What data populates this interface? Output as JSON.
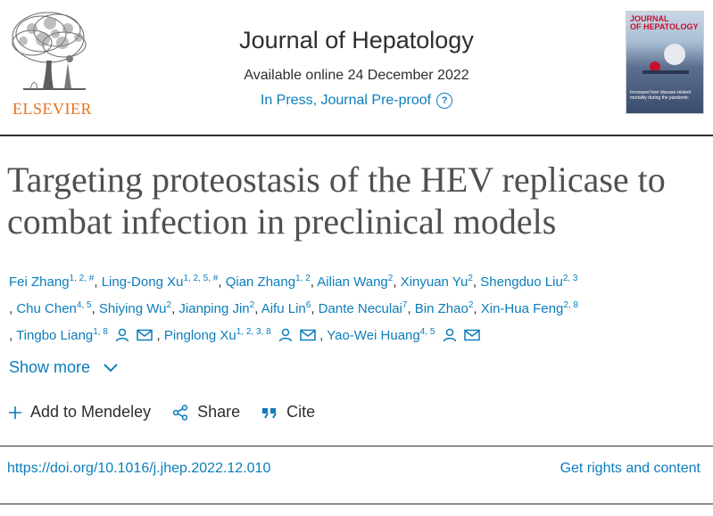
{
  "publisher": {
    "name": "ELSEVIER"
  },
  "journal": {
    "title": "Journal of Hepatology",
    "available": "Available online 24 December 2022",
    "status": "In Press, Journal Pre-proof",
    "help": "?"
  },
  "cover": {
    "title_line1": "JOURNAL",
    "title_line2": "OF HEPATOLOGY",
    "caption": "Increased liver disease-related mortality during the pandemic"
  },
  "article": {
    "title": "Targeting proteostasis of the HEV replicase to combat infection in preclinical models"
  },
  "authors": [
    {
      "name": "Fei Zhang",
      "aff": "1, 2, #"
    },
    {
      "name": "Ling-Dong Xu",
      "aff": "1, 2, 5, #"
    },
    {
      "name": "Qian Zhang",
      "aff": "1, 2"
    },
    {
      "name": "Ailian Wang",
      "aff": "2"
    },
    {
      "name": "Xinyuan Yu",
      "aff": "2"
    },
    {
      "name": "Shengduo Liu",
      "aff": "2, 3"
    },
    {
      "name": "Chu Chen",
      "aff": "4, 5"
    },
    {
      "name": "Shiying Wu",
      "aff": "2"
    },
    {
      "name": "Jianping Jin",
      "aff": "2"
    },
    {
      "name": "Aifu Lin",
      "aff": "6"
    },
    {
      "name": "Dante Neculai",
      "aff": "7"
    },
    {
      "name": "Bin Zhao",
      "aff": "2"
    },
    {
      "name": "Xin-Hua Feng",
      "aff": "2, 8"
    },
    {
      "name": "Tingbo Liang",
      "aff": "1, 8"
    },
    {
      "name": "Pinglong Xu",
      "aff": "1, 2, 3, 8"
    },
    {
      "name": "Yao-Wei Huang",
      "aff": "4, 5"
    }
  ],
  "show_more": "Show more",
  "actions": {
    "mendeley": "Add to Mendeley",
    "share": "Share",
    "cite": "Cite"
  },
  "doi": "https://doi.org/10.1016/j.jhep.2022.12.010",
  "rights": "Get rights and content",
  "colors": {
    "link": "#0c7dbb",
    "brand": "#e9711c",
    "text": "#2e2e2e"
  }
}
